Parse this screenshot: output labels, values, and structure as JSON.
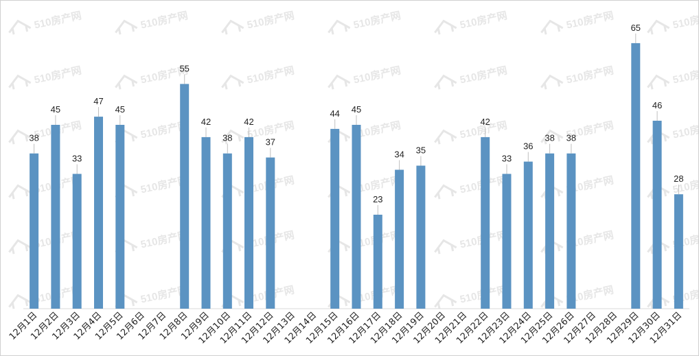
{
  "chart_data": {
    "type": "bar",
    "title": "",
    "xlabel": "",
    "ylabel": "",
    "ylim": [
      0,
      68
    ],
    "grid": false,
    "legend": "none",
    "bar_color": "#5b93c2",
    "label_color": "#222222",
    "categories": [
      "12月1日",
      "12月2日",
      "12月3日",
      "12月4日",
      "12月5日",
      "12月6日",
      "12月7日",
      "12月8日",
      "12月9日",
      "12月10日",
      "12月11日",
      "12月12日",
      "12月13日",
      "12月14日",
      "12月15日",
      "12月16日",
      "12月17日",
      "12月18日",
      "12月19日",
      "12月20日",
      "12月21日",
      "12月22日",
      "12月23日",
      "12月24日",
      "12月25日",
      "12月26日",
      "12月27日",
      "12月28日",
      "12月29日",
      "12月30日",
      "12月31日"
    ],
    "values": [
      38,
      45,
      33,
      47,
      45,
      null,
      null,
      55,
      42,
      38,
      42,
      37,
      null,
      null,
      44,
      45,
      23,
      34,
      35,
      null,
      null,
      42,
      33,
      36,
      38,
      38,
      null,
      null,
      65,
      46,
      28
    ]
  },
  "watermark": {
    "text": "510房产网",
    "color": "#e6e6e6"
  }
}
